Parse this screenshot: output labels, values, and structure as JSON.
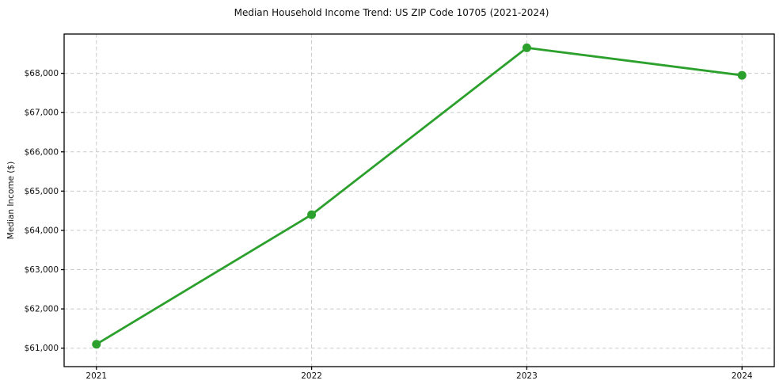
{
  "chart_data": {
    "type": "line",
    "title": "Median Household Income Trend: US ZIP Code 10705 (2021-2024)",
    "xlabel": "",
    "ylabel": "Median Income ($)",
    "x": [
      2021,
      2022,
      2023,
      2024
    ],
    "series": [
      {
        "name": "Median Household Income",
        "values": [
          61100,
          64400,
          68650,
          67950
        ]
      }
    ],
    "x_ticks": [
      2021,
      2022,
      2023,
      2024
    ],
    "x_tick_labels": [
      "2021",
      "2022",
      "2023",
      "2024"
    ],
    "y_ticks": [
      61000,
      62000,
      63000,
      64000,
      65000,
      66000,
      67000,
      68000
    ],
    "y_tick_labels": [
      "$61,000",
      "$62,000",
      "$63,000",
      "$64,000",
      "$65,000",
      "$66,000",
      "$67,000",
      "$68,000"
    ],
    "xlim": [
      2020.85,
      2024.15
    ],
    "ylim": [
      60530,
      69000
    ],
    "grid": true,
    "grid_style": "dashed",
    "legend_position": "none",
    "line_color": "#2ca02c",
    "marker": "circle",
    "grid_color": "#c9c9c9",
    "axis_color": "#000000",
    "text_color": "#111111",
    "background_color": "#ffffff"
  }
}
